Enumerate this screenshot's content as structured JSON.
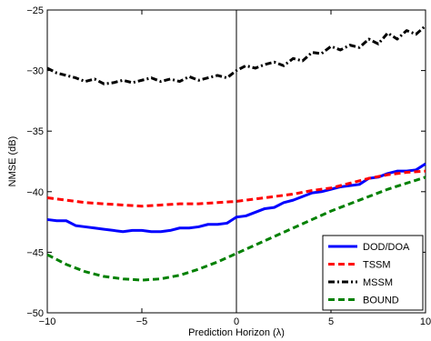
{
  "chart_data": {
    "type": "line",
    "xlabel": "Prediction Horizon (λ)",
    "ylabel": "NMSE (dB)",
    "xlim": [
      -10,
      10
    ],
    "ylim": [
      -50,
      -25
    ],
    "x_ticks": [
      -10,
      -5,
      0,
      5,
      10
    ],
    "y_ticks": [
      -25,
      -30,
      -35,
      -40,
      -45,
      -50
    ],
    "x_tick_labels": [
      "−10",
      "−5",
      "0",
      "5",
      "10"
    ],
    "y_tick_labels": [
      "−25",
      "−30",
      "−35",
      "−40",
      "−45",
      "−50"
    ],
    "vertical_reference_line_x": 0,
    "grid": false,
    "legend_position": "bottom-right",
    "series": [
      {
        "name": "DOD/DOA",
        "color": "#0000ff",
        "dash": "solid",
        "x": [
          -10,
          -9.5,
          -9,
          -8.5,
          -8,
          -7.5,
          -7,
          -6.5,
          -6,
          -5.5,
          -5,
          -4.5,
          -4,
          -3.5,
          -3,
          -2.5,
          -2,
          -1.5,
          -1,
          -0.5,
          0,
          0.5,
          1,
          1.5,
          2,
          2.5,
          3,
          3.5,
          4,
          4.5,
          5,
          5.5,
          6,
          6.5,
          7,
          7.5,
          8,
          8.5,
          9,
          9.5,
          10
        ],
        "y": [
          -42.3,
          -42.4,
          -42.4,
          -42.8,
          -42.9,
          -43.0,
          -43.1,
          -43.2,
          -43.3,
          -43.2,
          -43.2,
          -43.3,
          -43.3,
          -43.2,
          -43.0,
          -43.0,
          -42.9,
          -42.7,
          -42.7,
          -42.6,
          -42.1,
          -42.0,
          -41.7,
          -41.4,
          -41.3,
          -40.9,
          -40.7,
          -40.4,
          -40.1,
          -40.0,
          -39.8,
          -39.6,
          -39.5,
          -39.4,
          -38.9,
          -38.8,
          -38.5,
          -38.3,
          -38.3,
          -38.2,
          -37.7
        ]
      },
      {
        "name": "TSSM",
        "color": "#ff0000",
        "dash": "dashed",
        "x": [
          -10,
          -9,
          -8,
          -7,
          -6,
          -5,
          -4,
          -3,
          -2,
          -1,
          0,
          1,
          2,
          3,
          4,
          5,
          6,
          7,
          8,
          9,
          10
        ],
        "y": [
          -40.5,
          -40.7,
          -40.9,
          -41.0,
          -41.1,
          -41.2,
          -41.1,
          -41.0,
          -41.0,
          -40.9,
          -40.8,
          -40.6,
          -40.4,
          -40.2,
          -39.9,
          -39.7,
          -39.3,
          -38.9,
          -38.6,
          -38.4,
          -38.3
        ]
      },
      {
        "name": "MSSM",
        "color": "#000000",
        "dash": "dashdot",
        "x": [
          -10,
          -9.5,
          -9,
          -8.5,
          -8,
          -7.5,
          -7,
          -6.5,
          -6,
          -5.5,
          -5,
          -4.5,
          -4,
          -3.5,
          -3,
          -2.5,
          -2,
          -1.5,
          -1,
          -0.5,
          0,
          0.5,
          1,
          1.5,
          2,
          2.5,
          3,
          3.5,
          4,
          4.5,
          5,
          5.5,
          6,
          6.5,
          7,
          7.5,
          8,
          8.5,
          9,
          9.5,
          10
        ],
        "y": [
          -29.8,
          -30.2,
          -30.4,
          -30.6,
          -30.9,
          -30.7,
          -31.1,
          -31.0,
          -30.8,
          -31.0,
          -30.8,
          -30.6,
          -30.9,
          -30.7,
          -30.9,
          -30.5,
          -30.8,
          -30.6,
          -30.4,
          -30.6,
          -30.0,
          -29.6,
          -29.8,
          -29.5,
          -29.3,
          -29.6,
          -29.0,
          -29.2,
          -28.5,
          -28.6,
          -28.0,
          -28.3,
          -27.9,
          -28.1,
          -27.4,
          -27.8,
          -26.9,
          -27.4,
          -26.7,
          -27.0,
          -26.3
        ]
      },
      {
        "name": "BOUND",
        "color": "#008000",
        "dash": "dashed",
        "x": [
          -10,
          -9,
          -8,
          -7,
          -6,
          -5,
          -4,
          -3,
          -2,
          -1,
          0,
          1,
          2,
          3,
          4,
          5,
          6,
          7,
          8,
          9,
          10
        ],
        "y": [
          -45.2,
          -46.0,
          -46.6,
          -47.0,
          -47.2,
          -47.3,
          -47.2,
          -46.9,
          -46.4,
          -45.8,
          -45.1,
          -44.4,
          -43.7,
          -43.0,
          -42.3,
          -41.6,
          -41.0,
          -40.4,
          -39.8,
          -39.3,
          -38.8
        ]
      }
    ]
  }
}
